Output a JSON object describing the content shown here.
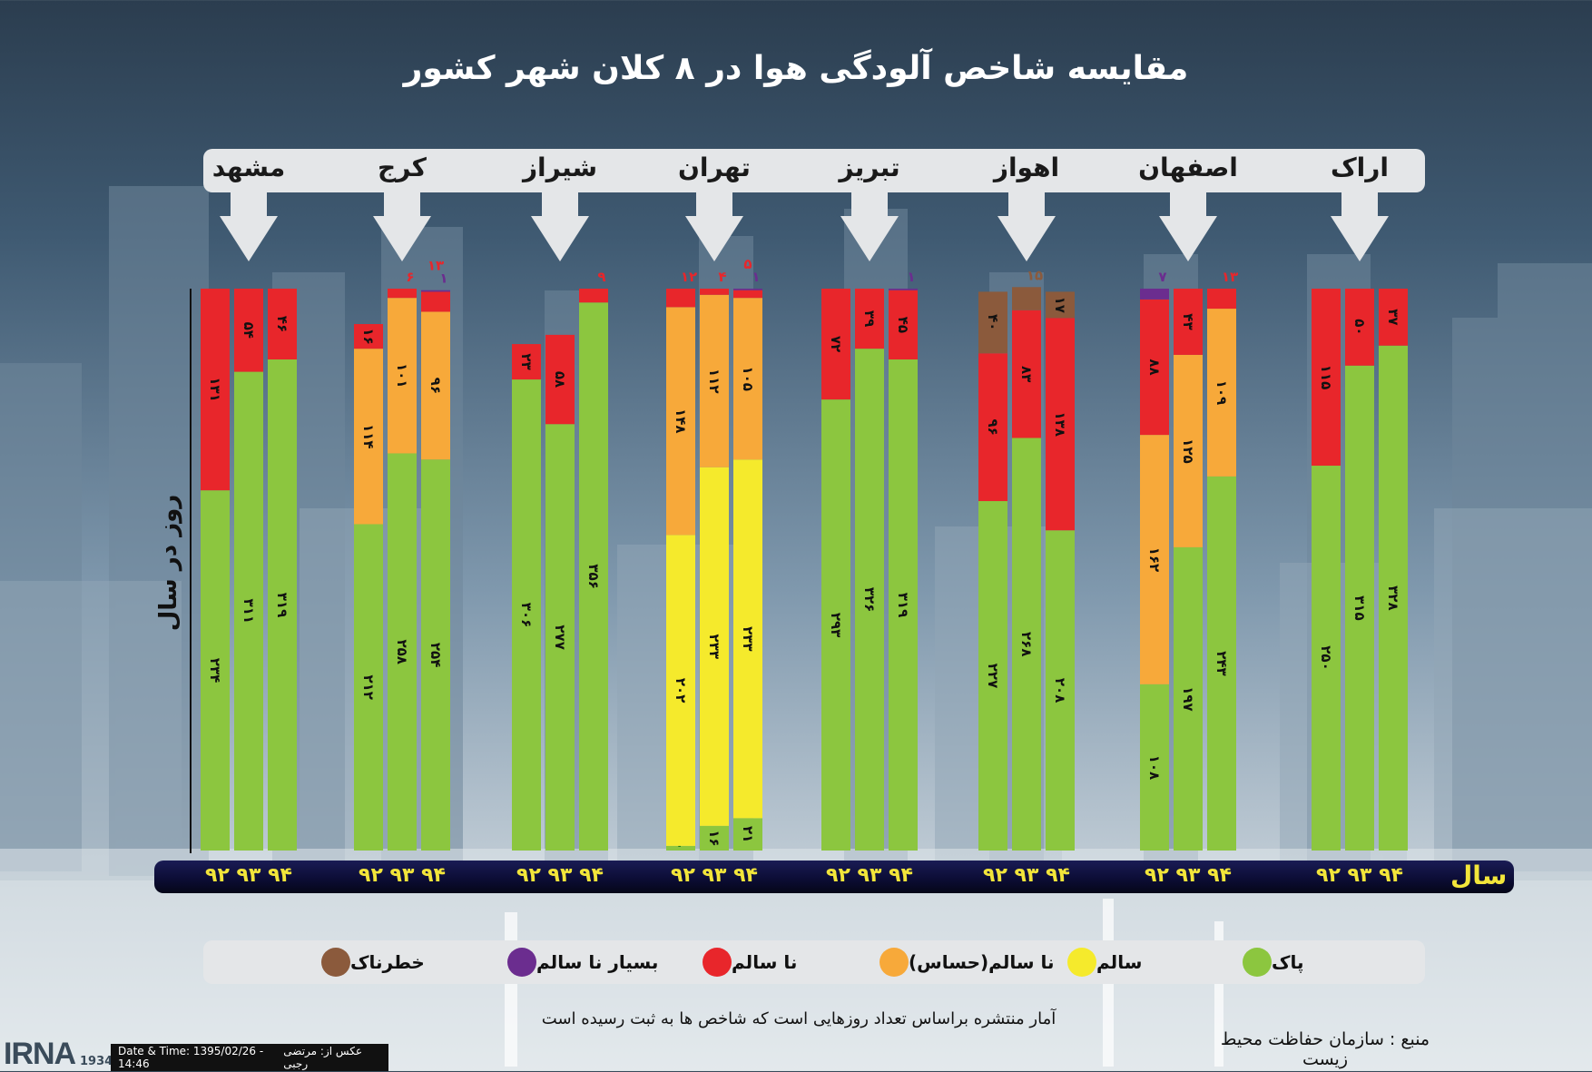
{
  "title": "مقایسه شاخص آلودگی هوا در ۸ کلان شهر کشور",
  "chart_data": {
    "type": "bar",
    "stacked": true,
    "orientation": "vertical",
    "ylabel": "روز در سال",
    "xlabel": "سال",
    "years": [
      "92",
      "93",
      "94"
    ],
    "year_group_label": "۹۲ ۹۳ ۹۴",
    "categories_order": [
      "پاک",
      "سالم",
      "نا سالم(حساس)",
      "نا سالم",
      "بسیار نا سالم",
      "خطرناک"
    ],
    "legend": [
      {
        "name": "پاک",
        "color": "#8cc63f"
      },
      {
        "name": "سالم",
        "color": "#f5ea2c"
      },
      {
        "name": "نا سالم(حساس)",
        "color": "#f7a93a"
      },
      {
        "name": "نا سالم",
        "color": "#e8262b"
      },
      {
        "name": "بسیار نا سالم",
        "color": "#6b2d8f"
      },
      {
        "name": "خطرناک",
        "color": "#8b5a3c"
      }
    ],
    "cities": [
      {
        "name": "اراک",
        "bars": [
          {
            "year": "92",
            "segments": [
              {
                "cat": "پاک",
                "value": 250,
                "label": "۲۵۰"
              },
              {
                "cat": "نا سالم",
                "value": 115,
                "label": "۱۱۵"
              }
            ]
          },
          {
            "year": "93",
            "segments": [
              {
                "cat": "پاک",
                "value": 315,
                "label": "۳۱۵"
              },
              {
                "cat": "نا سالم",
                "value": 50,
                "label": "۵۰"
              }
            ]
          },
          {
            "year": "94",
            "segments": [
              {
                "cat": "پاک",
                "value": 328,
                "label": "۳۲۸"
              },
              {
                "cat": "نا سالم",
                "value": 37,
                "label": "۳۷"
              }
            ]
          }
        ]
      },
      {
        "name": "اصفهان",
        "bars": [
          {
            "year": "92",
            "segments": [
              {
                "cat": "پاک",
                "value": 108,
                "label": "۱۰۸"
              },
              {
                "cat": "نا سالم(حساس)",
                "value": 162,
                "label": "۱۶۲"
              },
              {
                "cat": "نا سالم",
                "value": 88,
                "label": "۸۸"
              },
              {
                "cat": "بسیار نا سالم",
                "value": 7,
                "label": "۷"
              }
            ]
          },
          {
            "year": "93",
            "segments": [
              {
                "cat": "پاک",
                "value": 197,
                "label": "۱۹۷"
              },
              {
                "cat": "نا سالم(حساس)",
                "value": 125,
                "label": "۱۲۵"
              },
              {
                "cat": "نا سالم",
                "value": 43,
                "label": "۴۳"
              }
            ]
          },
          {
            "year": "94",
            "segments": [
              {
                "cat": "پاک",
                "value": 243,
                "label": "۲۴۳"
              },
              {
                "cat": "نا سالم(حساس)",
                "value": 109,
                "label": "۱۰۹"
              },
              {
                "cat": "نا سالم",
                "value": 13,
                "label": "۱۳"
              }
            ]
          }
        ]
      },
      {
        "name": "اهواز",
        "bars": [
          {
            "year": "92",
            "segments": [
              {
                "cat": "پاک",
                "value": 227,
                "label": "۲۲۷"
              },
              {
                "cat": "نا سالم",
                "value": 96,
                "label": "۹۶"
              },
              {
                "cat": "خطرناک",
                "value": 40,
                "label": "۴۰"
              }
            ]
          },
          {
            "year": "93",
            "segments": [
              {
                "cat": "پاک",
                "value": 268,
                "label": "۲۶۸"
              },
              {
                "cat": "نا سالم",
                "value": 83,
                "label": "۸۳"
              },
              {
                "cat": "خطرناک",
                "value": 15,
                "label": "۱۵"
              }
            ]
          },
          {
            "year": "94",
            "segments": [
              {
                "cat": "پاک",
                "value": 208,
                "label": "۲۰۸"
              },
              {
                "cat": "نا سالم",
                "value": 138,
                "label": "۱۳۸"
              },
              {
                "cat": "خطرناک",
                "value": 17,
                "label": "۱۷"
              }
            ]
          }
        ]
      },
      {
        "name": "تبریز",
        "bars": [
          {
            "year": "92",
            "segments": [
              {
                "cat": "پاک",
                "value": 293,
                "label": "۲۹۳"
              },
              {
                "cat": "نا سالم",
                "value": 72,
                "label": "۷۲"
              }
            ]
          },
          {
            "year": "93",
            "segments": [
              {
                "cat": "پاک",
                "value": 326,
                "label": "۳۲۶"
              },
              {
                "cat": "نا سالم",
                "value": 39,
                "label": "۳۹"
              }
            ]
          },
          {
            "year": "94",
            "segments": [
              {
                "cat": "پاک",
                "value": 319,
                "label": "۳۱۹"
              },
              {
                "cat": "نا سالم",
                "value": 45,
                "label": "۴۵"
              },
              {
                "cat": "بسیار نا سالم",
                "value": 1,
                "label": "۱"
              }
            ]
          }
        ]
      },
      {
        "name": "تهران",
        "bars": [
          {
            "year": "92",
            "segments": [
              {
                "cat": "پاک",
                "value": 3,
                "label": "۳"
              },
              {
                "cat": "سالم",
                "value": 202,
                "label": "۲۰۲"
              },
              {
                "cat": "نا سالم(حساس)",
                "value": 148,
                "label": "۱۴۸"
              },
              {
                "cat": "نا سالم",
                "value": 12,
                "label": "۱۲"
              }
            ]
          },
          {
            "year": "93",
            "segments": [
              {
                "cat": "پاک",
                "value": 16,
                "label": "۱۶"
              },
              {
                "cat": "سالم",
                "value": 233,
                "label": "۲۳۳"
              },
              {
                "cat": "نا سالم(حساس)",
                "value": 112,
                "label": "۱۱۲"
              },
              {
                "cat": "نا سالم",
                "value": 4,
                "label": "۴"
              }
            ]
          },
          {
            "year": "94",
            "segments": [
              {
                "cat": "پاک",
                "value": 21,
                "label": "۲۱"
              },
              {
                "cat": "سالم",
                "value": 233,
                "label": "۲۳۳"
              },
              {
                "cat": "نا سالم(حساس)",
                "value": 105,
                "label": "۱۰۵"
              },
              {
                "cat": "نا سالم",
                "value": 5,
                "label": "۵"
              },
              {
                "cat": "بسیار نا سالم",
                "value": 1,
                "label": "۱"
              }
            ]
          }
        ]
      },
      {
        "name": "شیراز",
        "bars": [
          {
            "year": "92",
            "segments": [
              {
                "cat": "پاک",
                "value": 306,
                "label": "۳۰۶"
              },
              {
                "cat": "نا سالم",
                "value": 23,
                "label": "۲۳"
              }
            ]
          },
          {
            "year": "93",
            "segments": [
              {
                "cat": "پاک",
                "value": 277,
                "label": "۲۷۷"
              },
              {
                "cat": "نا سالم",
                "value": 58,
                "label": "۵۸"
              }
            ]
          },
          {
            "year": "94",
            "segments": [
              {
                "cat": "پاک",
                "value": 356,
                "label": "۳۵۶"
              },
              {
                "cat": "نا سالم",
                "value": 9,
                "label": "۹"
              }
            ]
          }
        ]
      },
      {
        "name": "کرج",
        "bars": [
          {
            "year": "92",
            "segments": [
              {
                "cat": "پاک",
                "value": 212,
                "label": "۲۱۲"
              },
              {
                "cat": "نا سالم(حساس)",
                "value": 114,
                "label": "۱۱۴"
              },
              {
                "cat": "نا سالم",
                "value": 16,
                "label": "۱۶"
              }
            ]
          },
          {
            "year": "93",
            "segments": [
              {
                "cat": "پاک",
                "value": 258,
                "label": "۲۵۸"
              },
              {
                "cat": "نا سالم(حساس)",
                "value": 101,
                "label": "۱۰۱"
              },
              {
                "cat": "نا سالم",
                "value": 6,
                "label": "۶"
              }
            ]
          },
          {
            "year": "94",
            "segments": [
              {
                "cat": "پاک",
                "value": 254,
                "label": "۲۵۴"
              },
              {
                "cat": "نا سالم(حساس)",
                "value": 96,
                "label": "۹۶"
              },
              {
                "cat": "نا سالم",
                "value": 13,
                "label": "۱۳"
              },
              {
                "cat": "بسیار نا سالم",
                "value": 1,
                "label": "۱"
              }
            ]
          }
        ]
      },
      {
        "name": "مشهد",
        "bars": [
          {
            "year": "92",
            "segments": [
              {
                "cat": "پاک",
                "value": 234,
                "label": "۲۳۴"
              },
              {
                "cat": "نا سالم",
                "value": 131,
                "label": "۱۳۱"
              }
            ]
          },
          {
            "year": "93",
            "segments": [
              {
                "cat": "پاک",
                "value": 311,
                "label": "۳۱۱"
              },
              {
                "cat": "نا سالم",
                "value": 54,
                "label": "۵۴"
              }
            ]
          },
          {
            "year": "94",
            "segments": [
              {
                "cat": "پاک",
                "value": 319,
                "label": "۳۱۹"
              },
              {
                "cat": "نا سالم",
                "value": 46,
                "label": "۴۶"
              }
            ]
          }
        ]
      }
    ]
  },
  "note": "آمار منتشره براساس تعداد روزهایی است که شاخص ها به ثبت رسیده است",
  "source": "منبع : سازمان حفاظت محیط زیست",
  "credit": {
    "agency": "IRNA",
    "agency_year": "1934",
    "photo_by": "عکس از: مرتضی رجبی",
    "datetime": "Date & Time: 1395/02/26 - 14:46"
  }
}
